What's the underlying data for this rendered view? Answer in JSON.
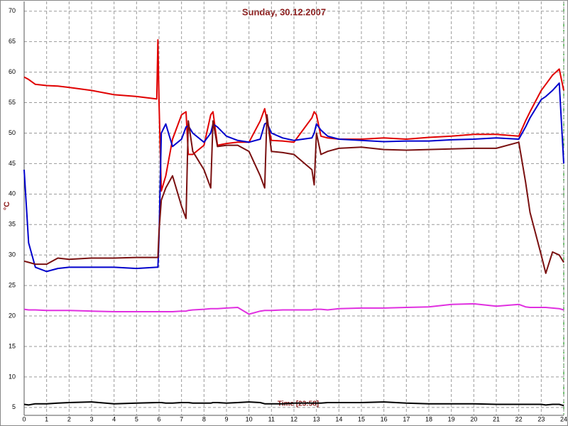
{
  "chart_data": {
    "type": "line",
    "title": "Sunday, 30.12.2007",
    "ylabel": "°C",
    "annotation": "Time [23:58]",
    "x": [
      0,
      0.2,
      0.5,
      1,
      1.5,
      2,
      3,
      4,
      5,
      5.9,
      5.95,
      6.0,
      6.1,
      6.3,
      6.6,
      7,
      7.2,
      7.3,
      7.5,
      8,
      8.3,
      8.4,
      8.6,
      9,
      9.5,
      10,
      10.5,
      10.7,
      10.8,
      11,
      11.5,
      12,
      12.8,
      12.9,
      13,
      13.2,
      13.5,
      14,
      15,
      16,
      17,
      18,
      19,
      20,
      21,
      22,
      22.3,
      22.5,
      23,
      23.2,
      23.5,
      23.8,
      24
    ],
    "series": [
      {
        "color": "#e00000",
        "values": [
          59.2,
          58.8,
          58,
          57.8,
          57.7,
          57.5,
          57,
          56.3,
          56,
          55.6,
          65.3,
          55,
          40.5,
          43,
          49,
          53,
          53.5,
          46.5,
          46.5,
          48,
          53,
          53.5,
          48,
          48.3,
          48.5,
          48.5,
          52,
          54,
          52,
          48.8,
          48.7,
          48.5,
          52.5,
          53.5,
          53,
          49.5,
          49.2,
          49,
          49,
          49.2,
          49,
          49.3,
          49.5,
          49.8,
          49.8,
          49.5,
          52,
          53.5,
          57,
          58,
          59.5,
          60.5,
          57
        ]
      },
      {
        "color": "#0000cc",
        "values": [
          44,
          32,
          28,
          27.3,
          27.8,
          28,
          28,
          28,
          27.8,
          28,
          28,
          33,
          50,
          51.5,
          47.8,
          49,
          51,
          51.2,
          50,
          48.5,
          50,
          51.5,
          51,
          49.5,
          48.8,
          48.5,
          49,
          51.5,
          51.7,
          50,
          49.2,
          48.8,
          49.2,
          50,
          51.5,
          50.5,
          49.5,
          49,
          48.8,
          48.6,
          48.7,
          48.7,
          48.9,
          49,
          49.2,
          49,
          51,
          52.5,
          55.5,
          56,
          57,
          58.2,
          45
        ]
      },
      {
        "color": "#7a1010",
        "values": [
          29,
          28.8,
          28.5,
          28.5,
          29.5,
          29.3,
          29.5,
          29.5,
          29.6,
          29.6,
          29.6,
          34,
          39,
          41,
          43,
          38,
          36,
          52,
          47,
          44,
          41,
          52,
          47.8,
          48,
          48,
          47,
          43,
          41,
          53,
          47,
          46.8,
          46.5,
          44,
          41.5,
          50,
          46.5,
          47,
          47.5,
          47.7,
          47.3,
          47.2,
          47.3,
          47.4,
          47.5,
          47.5,
          48.5,
          42,
          37,
          30,
          27,
          30.5,
          30,
          28.8
        ]
      },
      {
        "color": "#e030e0",
        "values": [
          21.1,
          21,
          21,
          20.9,
          20.9,
          20.9,
          20.8,
          20.7,
          20.7,
          20.7,
          20.7,
          20.7,
          20.7,
          20.7,
          20.7,
          20.8,
          20.8,
          20.9,
          21,
          21.1,
          21.2,
          21.2,
          21.2,
          21.3,
          21.4,
          20.3,
          20.8,
          20.9,
          20.9,
          20.9,
          21,
          21,
          21,
          21.1,
          21.1,
          21.1,
          21,
          21.2,
          21.3,
          21.3,
          21.4,
          21.5,
          21.9,
          22,
          21.6,
          21.9,
          21.5,
          21.4,
          21.4,
          21.4,
          21.3,
          21.2,
          21
        ]
      },
      {
        "color": "#000000",
        "values": [
          5.5,
          5.4,
          5.6,
          5.6,
          5.7,
          5.8,
          5.9,
          5.6,
          5.7,
          5.8,
          5.8,
          5.8,
          5.8,
          5.7,
          5.7,
          5.8,
          5.8,
          5.8,
          5.7,
          5.7,
          5.7,
          5.8,
          5.8,
          5.7,
          5.8,
          5.9,
          5.8,
          5.6,
          5.6,
          5.6,
          5.6,
          5.7,
          5.7,
          5.7,
          5.7,
          5.7,
          5.8,
          5.8,
          5.8,
          5.9,
          5.7,
          5.6,
          5.6,
          5.6,
          5.5,
          5.5,
          5.5,
          5.5,
          5.5,
          5.4,
          5.5,
          5.5,
          5.3
        ]
      }
    ],
    "xlim": [
      0,
      24
    ],
    "xticks": [
      0,
      1,
      2,
      3,
      4,
      5,
      6,
      7,
      8,
      9,
      10,
      11,
      12,
      13,
      14,
      15,
      16,
      17,
      18,
      19,
      20,
      21,
      22,
      23,
      24
    ],
    "ylim": [
      3.7,
      71.6
    ],
    "yticks": [
      5,
      10,
      15,
      20,
      25,
      30,
      35,
      40,
      45,
      50,
      55,
      60,
      65,
      70
    ],
    "grid": true
  }
}
